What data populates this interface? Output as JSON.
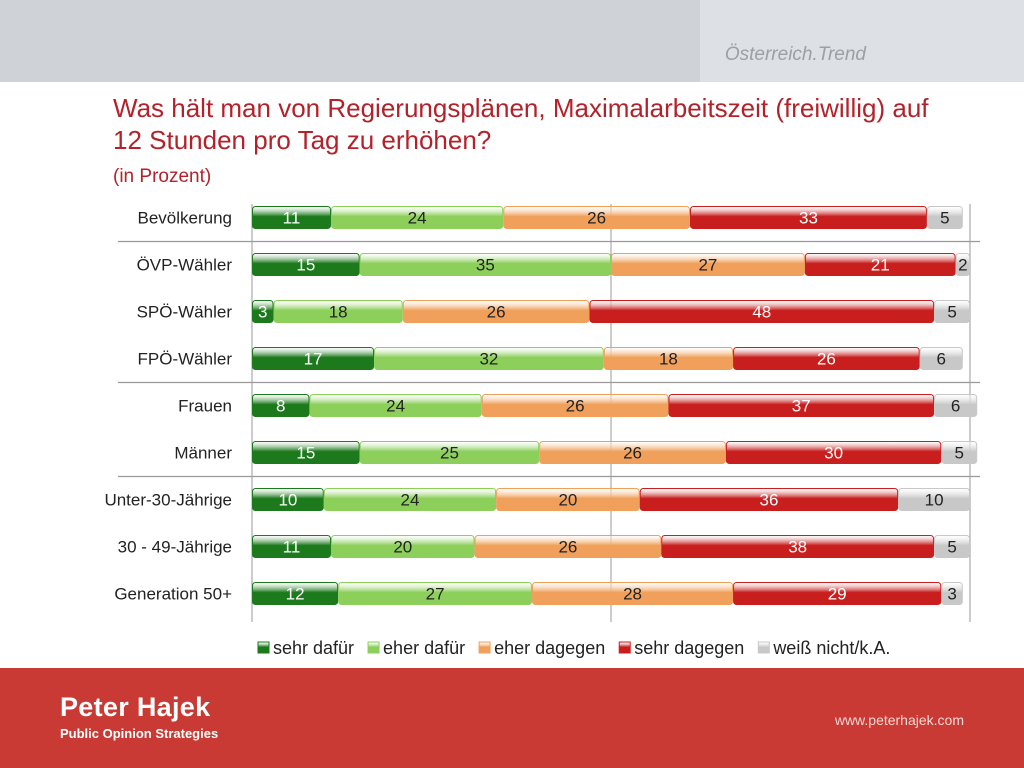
{
  "header": {
    "brand": "Österreich.Trend",
    "title": "Was hält man von Regierungsplänen, Maximalarbeitszeit (freiwillig) auf 12 Stunden pro Tag zu erhöhen?",
    "subtitle": "(in Prozent)"
  },
  "footer": {
    "company": "Peter Hajek",
    "tagline": "Public Opinion Strategies",
    "url": "www.peterhajek.com"
  },
  "chart_data": {
    "type": "bar",
    "orientation": "horizontal",
    "stacked": true,
    "title": "Was hält man von Regierungsplänen, Maximalarbeitszeit (freiwillig) auf 12 Stunden pro Tag zu erhöhen?",
    "xlabel": "",
    "ylabel": "",
    "xlim": [
      0,
      100
    ],
    "grid": true,
    "legend": "bottom",
    "categories": [
      "Bevölkerung",
      "ÖVP-Wähler",
      "SPÖ-Wähler",
      "FPÖ-Wähler",
      "Frauen",
      "Männer",
      "Unter-30-Jährige",
      "30 - 49-Jährige",
      "Generation 50+"
    ],
    "group_separators_after": [
      0,
      3,
      5
    ],
    "series": [
      {
        "name": "sehr dafür",
        "color": "#1c7a1c",
        "values": [
          11,
          15,
          3,
          17,
          8,
          15,
          10,
          11,
          12
        ]
      },
      {
        "name": "eher dafür",
        "color": "#8ccf5a",
        "values": [
          24,
          35,
          18,
          32,
          24,
          25,
          24,
          20,
          27
        ]
      },
      {
        "name": "eher dagegen",
        "color": "#f0a05a",
        "values": [
          26,
          27,
          26,
          18,
          26,
          26,
          20,
          26,
          28
        ]
      },
      {
        "name": "sehr dagegen",
        "color": "#c81e1e",
        "values": [
          33,
          21,
          48,
          26,
          37,
          30,
          36,
          38,
          29
        ]
      },
      {
        "name": "weiß nicht/k.A.",
        "color": "#c8c8c8",
        "values": [
          5,
          2,
          5,
          6,
          6,
          5,
          10,
          5,
          3
        ]
      }
    ]
  }
}
